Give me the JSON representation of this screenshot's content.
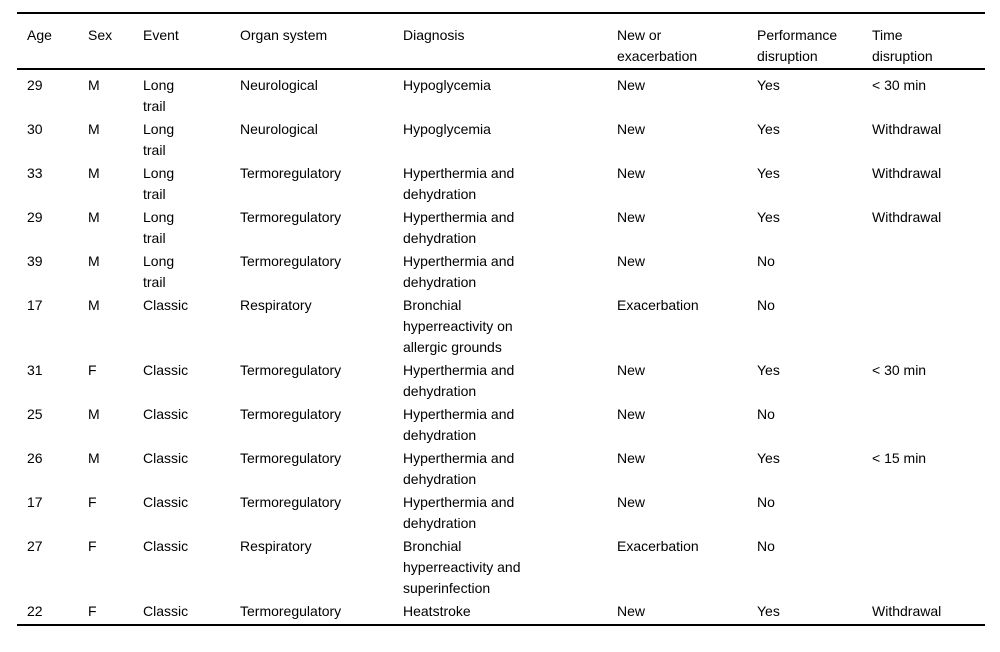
{
  "table": {
    "columns": [
      "Age",
      "Sex",
      "Event",
      "Organ system",
      "Diagnosis",
      "New or\nexacerbation",
      "Performance\ndisruption",
      "Time\ndisruption"
    ],
    "rows": [
      [
        "29",
        "M",
        "Long\ntrail",
        "Neurological",
        "Hypoglycemia",
        "New",
        "Yes",
        "< 30 min"
      ],
      [
        "30",
        "M",
        "Long\ntrail",
        "Neurological",
        "Hypoglycemia",
        "New",
        "Yes",
        "Withdrawal"
      ],
      [
        "33",
        "M",
        "Long\ntrail",
        "Termoregulatory",
        "Hyperthermia and\ndehydration",
        "New",
        "Yes",
        "Withdrawal"
      ],
      [
        "29",
        "M",
        "Long\ntrail",
        "Termoregulatory",
        "Hyperthermia and\ndehydration",
        "New",
        "Yes",
        "Withdrawal"
      ],
      [
        "39",
        "M",
        "Long\ntrail",
        "Termoregulatory",
        "Hyperthermia and\ndehydration",
        "New",
        "No",
        ""
      ],
      [
        "17",
        "M",
        "Classic",
        "Respiratory",
        "Bronchial\nhyperreactivity on\nallergic grounds",
        "Exacerbation",
        "No",
        ""
      ],
      [
        "31",
        "F",
        "Classic",
        "Termoregulatory",
        "Hyperthermia and\ndehydration",
        "New",
        "Yes",
        "< 30 min"
      ],
      [
        "25",
        "M",
        "Classic",
        "Termoregulatory",
        "Hyperthermia and\ndehydration",
        "New",
        "No",
        ""
      ],
      [
        "26",
        "M",
        "Classic",
        "Termoregulatory",
        "Hyperthermia and\ndehydration",
        "New",
        "Yes",
        "< 15 min"
      ],
      [
        "17",
        "F",
        "Classic",
        "Termoregulatory",
        "Hyperthermia and\ndehydration",
        "New",
        "No",
        ""
      ],
      [
        "27",
        "F",
        "Classic",
        "Respiratory",
        "Bronchial\nhyperreactivity and\nsuperinfection",
        "Exacerbation",
        "No",
        ""
      ],
      [
        "22",
        "F",
        "Classic",
        "Termoregulatory",
        "Heatstroke",
        "New",
        "Yes",
        "Withdrawal"
      ]
    ],
    "text_color": "#000000",
    "rule_color": "#000000"
  }
}
